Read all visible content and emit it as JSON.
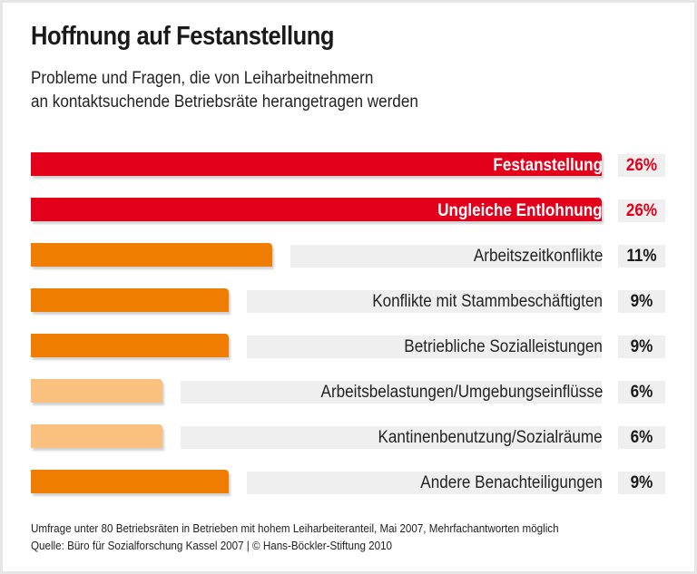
{
  "chart_data": {
    "type": "bar",
    "orientation": "horizontal",
    "title": "Hoffnung auf Festanstellung",
    "subtitle": [
      "Probleme und Fragen, die von Leiharbeitnehmern",
      "an kontaktsuchende Betriebsräte herangetragen werden"
    ],
    "categories": [
      "Festanstellung",
      "Ungleiche Entlohnung",
      "Arbeitszeitkonflikte",
      "Konflikte mit Stammbeschäftigten",
      "Betriebliche Sozialleistungen",
      "Arbeitsbelastungen/Umgebungseinflüsse",
      "Kantinenbenutzung/Sozialräume",
      "Andere Benachteiligungen"
    ],
    "values": [
      26,
      26,
      11,
      9,
      9,
      6,
      6,
      9
    ],
    "value_labels": [
      "26%",
      "26%",
      "11%",
      "9%",
      "9%",
      "6%",
      "6%",
      "9%"
    ],
    "unit": "%",
    "xlim": [
      0,
      26
    ],
    "grid": false,
    "legend": "none",
    "notes": [
      "Umfrage unter 80 Betriebsräten in Betrieben mit hohem Leiharbeiteranteil, Mai 2007, Mehrfachantworten möglich",
      "Quelle: Büro für Sozialforschung Kassel 2007 | © Hans-Böckler-Stiftung 2010"
    ]
  },
  "colors": {
    "red": "#e2001a",
    "orange": "#ee7d00",
    "light_orange": "#f9c07e",
    "label_bg": "#efefef"
  },
  "bar_colors": [
    "red",
    "red",
    "orange",
    "orange",
    "orange",
    "light_orange",
    "light_orange",
    "orange"
  ]
}
